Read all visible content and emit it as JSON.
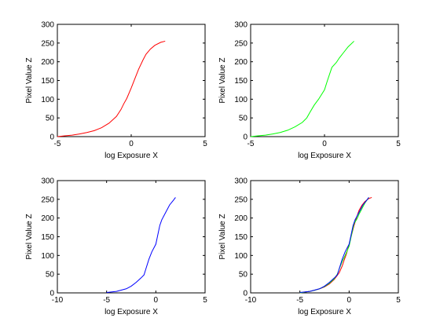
{
  "chart_data": [
    {
      "type": "line",
      "xlabel": "log Exposure X",
      "ylabel": "Pixel Value Z",
      "xlim": [
        -5,
        5
      ],
      "ylim": [
        0,
        300
      ],
      "xticks": [
        -5,
        0,
        5
      ],
      "yticks": [
        0,
        50,
        100,
        150,
        200,
        250,
        300
      ],
      "grid": false,
      "series": [
        {
          "color": "#ff0000",
          "x": [
            -5.0,
            -4.5,
            -4.0,
            -3.5,
            -3.0,
            -2.5,
            -2.0,
            -1.5,
            -1.0,
            -0.7,
            -0.5,
            -0.3,
            0.0,
            0.3,
            0.5,
            0.8,
            1.0,
            1.3,
            1.6,
            2.0,
            2.3
          ],
          "y": [
            0,
            2,
            4,
            7,
            11,
            16,
            24,
            36,
            54,
            72,
            88,
            102,
            130,
            160,
            180,
            205,
            220,
            234,
            244,
            252,
            255
          ]
        }
      ]
    },
    {
      "type": "line",
      "xlabel": "log Exposure X",
      "ylabel": "Pixel Value Z",
      "xlim": [
        -5,
        5
      ],
      "ylim": [
        0,
        300
      ],
      "xticks": [
        -5,
        0,
        5
      ],
      "yticks": [
        0,
        50,
        100,
        150,
        200,
        250,
        300
      ],
      "grid": false,
      "series": [
        {
          "color": "#00ff00",
          "x": [
            -5.0,
            -4.5,
            -4.0,
            -3.5,
            -3.0,
            -2.5,
            -2.0,
            -1.5,
            -1.2,
            -1.0,
            -0.7,
            -0.4,
            0.0,
            0.2,
            0.5,
            0.8,
            1.0,
            1.3,
            1.6,
            2.0
          ],
          "y": [
            0,
            2,
            4,
            7,
            11,
            17,
            26,
            38,
            50,
            64,
            84,
            100,
            125,
            150,
            185,
            198,
            210,
            225,
            240,
            255
          ]
        }
      ]
    },
    {
      "type": "line",
      "xlabel": "log Exposure X",
      "ylabel": "Pixel Value Z",
      "xlim": [
        -10,
        5
      ],
      "ylim": [
        0,
        300
      ],
      "xticks": [
        -10,
        -5,
        0,
        5
      ],
      "yticks": [
        0,
        50,
        100,
        150,
        200,
        250,
        300
      ],
      "grid": false,
      "series": [
        {
          "color": "#0000ff",
          "x": [
            -5.0,
            -4.0,
            -3.0,
            -2.5,
            -2.0,
            -1.5,
            -1.2,
            -1.0,
            -0.7,
            -0.4,
            0.0,
            0.2,
            0.4,
            0.6,
            1.0,
            1.4,
            1.8,
            2.0
          ],
          "y": [
            1,
            4,
            11,
            18,
            28,
            40,
            48,
            65,
            90,
            110,
            130,
            155,
            180,
            195,
            215,
            235,
            248,
            255
          ]
        }
      ]
    },
    {
      "type": "line",
      "xlabel": "log Exposure X",
      "ylabel": "Pixel Value Z",
      "xlim": [
        -10,
        5
      ],
      "ylim": [
        0,
        300
      ],
      "xticks": [
        -10,
        -5,
        0,
        5
      ],
      "yticks": [
        0,
        50,
        100,
        150,
        200,
        250,
        300
      ],
      "grid": false,
      "series": [
        {
          "color": "#ff0000",
          "x": [
            -5.0,
            -4.5,
            -4.0,
            -3.5,
            -3.0,
            -2.5,
            -2.0,
            -1.5,
            -1.0,
            -0.7,
            -0.5,
            -0.3,
            0.0,
            0.3,
            0.5,
            0.8,
            1.0,
            1.3,
            1.6,
            2.0,
            2.3
          ],
          "y": [
            0,
            2,
            4,
            7,
            11,
            16,
            24,
            36,
            54,
            72,
            88,
            102,
            130,
            160,
            180,
            205,
            220,
            234,
            244,
            252,
            255
          ]
        },
        {
          "color": "#00ff00",
          "x": [
            -5.0,
            -4.5,
            -4.0,
            -3.5,
            -3.0,
            -2.5,
            -2.0,
            -1.5,
            -1.2,
            -1.0,
            -0.7,
            -0.4,
            0.0,
            0.2,
            0.5,
            0.8,
            1.0,
            1.3,
            1.6,
            2.0
          ],
          "y": [
            0,
            2,
            4,
            7,
            11,
            17,
            26,
            38,
            50,
            64,
            84,
            100,
            125,
            150,
            185,
            198,
            210,
            225,
            240,
            255
          ]
        },
        {
          "color": "#0000ff",
          "x": [
            -5.0,
            -4.0,
            -3.0,
            -2.5,
            -2.0,
            -1.5,
            -1.2,
            -1.0,
            -0.7,
            -0.4,
            0.0,
            0.2,
            0.4,
            0.6,
            1.0,
            1.4,
            1.8,
            2.0
          ],
          "y": [
            1,
            4,
            11,
            18,
            28,
            40,
            48,
            65,
            90,
            110,
            130,
            155,
            180,
            195,
            215,
            235,
            248,
            255
          ]
        }
      ]
    }
  ]
}
